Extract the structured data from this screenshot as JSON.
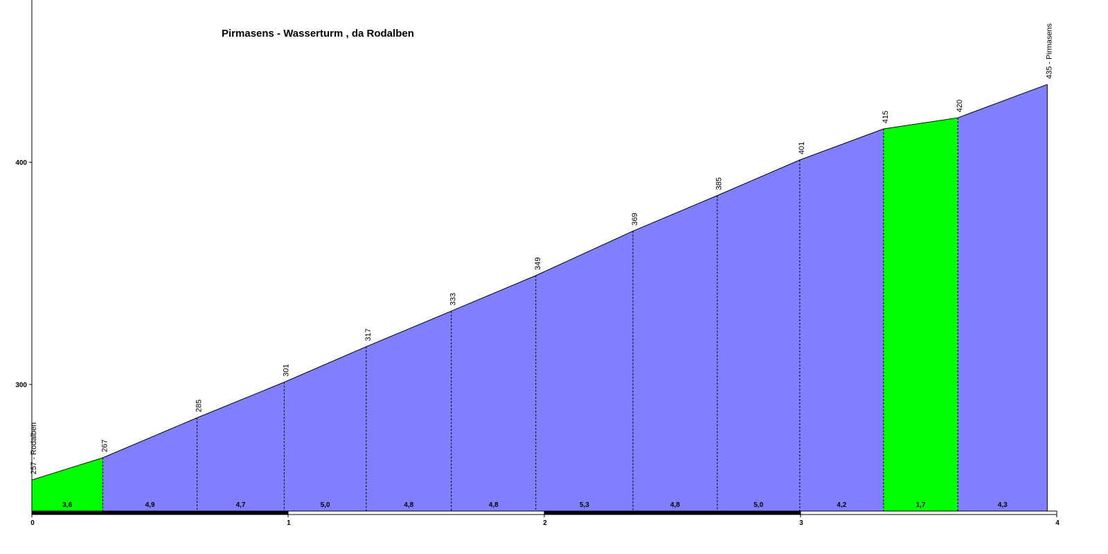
{
  "chart_data": {
    "type": "area",
    "title": "Pirmasens - Wasserturm , da Rodalben",
    "start_label": "Rodalben",
    "end_label": "Pirmasens",
    "x_unit": "km",
    "xlim": [
      0,
      4
    ],
    "ylim": [
      243,
      473
    ],
    "y_ticks": [
      "300",
      "400"
    ],
    "y_tick_values": [
      300,
      400
    ],
    "x_ticks": [
      "0",
      "1",
      "2",
      "3",
      "4"
    ],
    "x_tick_values": [
      0,
      1,
      2,
      3,
      4
    ],
    "points": [
      {
        "km": 0.0,
        "elevation": 257,
        "label": "257 - Rodalben"
      },
      {
        "km": 0.277,
        "elevation": 267,
        "label": "267"
      },
      {
        "km": 0.645,
        "elevation": 285,
        "label": "285"
      },
      {
        "km": 0.985,
        "elevation": 301,
        "label": "301"
      },
      {
        "km": 1.305,
        "elevation": 317,
        "label": "317"
      },
      {
        "km": 1.637,
        "elevation": 333,
        "label": "333"
      },
      {
        "km": 1.967,
        "elevation": 349,
        "label": "349"
      },
      {
        "km": 2.346,
        "elevation": 369,
        "label": "369"
      },
      {
        "km": 2.675,
        "elevation": 385,
        "label": "385"
      },
      {
        "km": 2.997,
        "elevation": 401,
        "label": "401"
      },
      {
        "km": 3.324,
        "elevation": 415,
        "label": "415"
      },
      {
        "km": 3.614,
        "elevation": 420,
        "label": "420"
      },
      {
        "km": 3.963,
        "elevation": 435,
        "label": "435 - Pirmasens"
      }
    ],
    "segments": [
      {
        "gradient": "3,6",
        "color": "#00ff00"
      },
      {
        "gradient": "4,9",
        "color": "#8080ff"
      },
      {
        "gradient": "4,7",
        "color": "#8080ff"
      },
      {
        "gradient": "5,0",
        "color": "#8080ff"
      },
      {
        "gradient": "4,8",
        "color": "#8080ff"
      },
      {
        "gradient": "4,8",
        "color": "#8080ff"
      },
      {
        "gradient": "5,3",
        "color": "#8080ff"
      },
      {
        "gradient": "4,8",
        "color": "#8080ff"
      },
      {
        "gradient": "5,0",
        "color": "#8080ff"
      },
      {
        "gradient": "4,2",
        "color": "#8080ff"
      },
      {
        "gradient": "1,7",
        "color": "#00ff00"
      },
      {
        "gradient": "4,3",
        "color": "#8080ff"
      }
    ],
    "grid": false,
    "legend": "none"
  },
  "colors": {
    "climb": "#8080ff",
    "easy": "#00ff00",
    "outline": "#000000",
    "scalebar_dark": "#000000",
    "scalebar_light": "#ffffff"
  }
}
